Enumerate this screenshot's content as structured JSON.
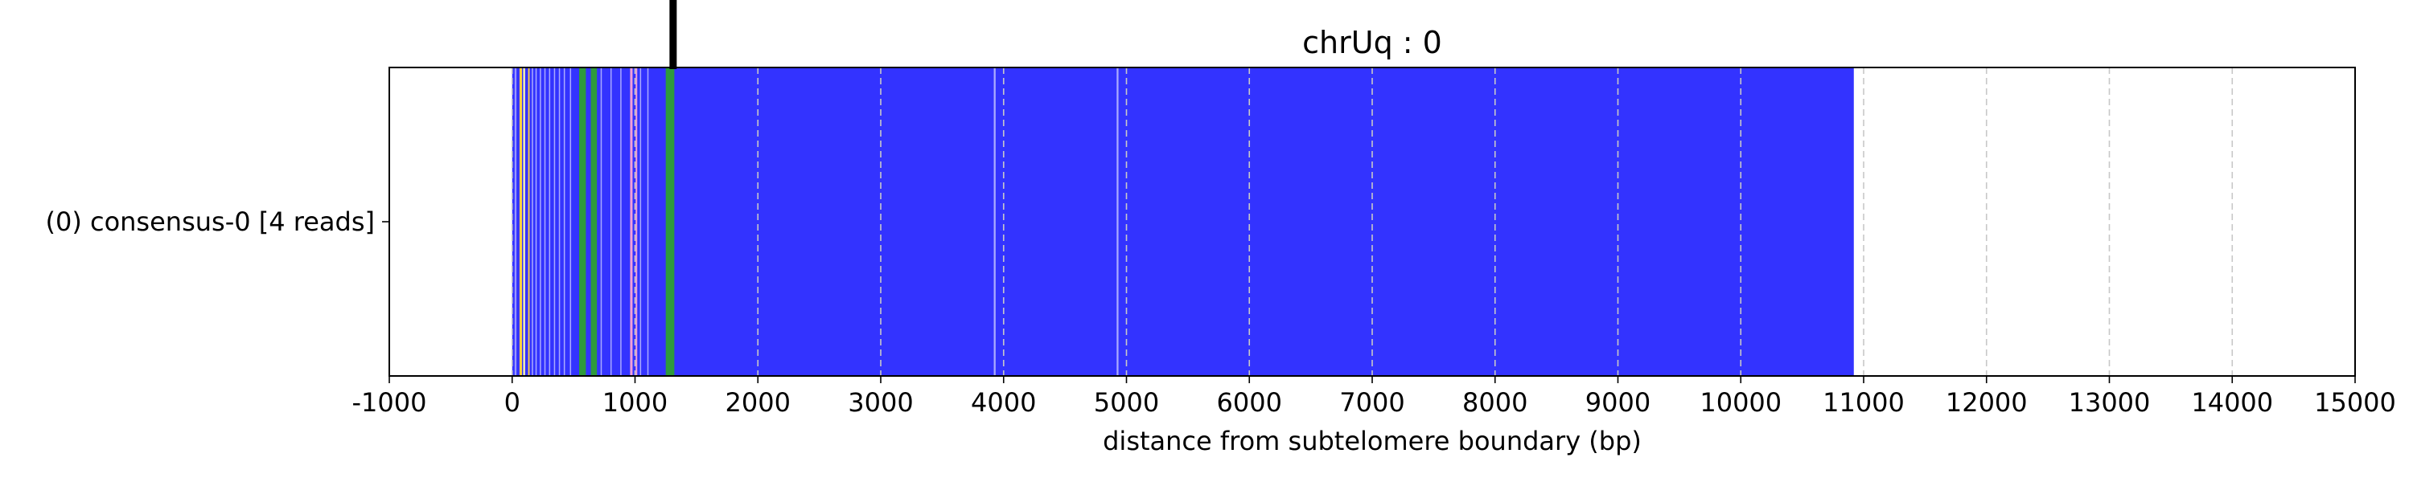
{
  "chart_data": {
    "type": "bar",
    "title": "chrUq : 0",
    "xlabel": "distance from subtelomere boundary (bp)",
    "ylabel": "",
    "xlim": [
      -1000,
      15000
    ],
    "xticks": [
      -1000,
      0,
      1000,
      2000,
      3000,
      4000,
      5000,
      6000,
      7000,
      8000,
      9000,
      10000,
      11000,
      12000,
      13000,
      14000,
      15000
    ],
    "grid": "vertical dashed",
    "rows": [
      {
        "label": "(0) consensus-0 [4 reads]"
      }
    ],
    "boundary_marker_x": 1310,
    "segments": [
      {
        "start": 0,
        "end": 10920,
        "color": "#3333ff"
      },
      {
        "start": 20,
        "end": 35,
        "color": "#9a9aff"
      },
      {
        "start": 60,
        "end": 80,
        "color": "#ffd23f"
      },
      {
        "start": 90,
        "end": 105,
        "color": "#ffffaa"
      },
      {
        "start": 130,
        "end": 142,
        "color": "#ffd23f"
      },
      {
        "start": 160,
        "end": 170,
        "color": "#aaaaff"
      },
      {
        "start": 190,
        "end": 198,
        "color": "#aaaaff"
      },
      {
        "start": 225,
        "end": 232,
        "color": "#aaaaff"
      },
      {
        "start": 262,
        "end": 268,
        "color": "#aaaaff"
      },
      {
        "start": 300,
        "end": 306,
        "color": "#aaaaff"
      },
      {
        "start": 340,
        "end": 345,
        "color": "#aaaaff"
      },
      {
        "start": 380,
        "end": 386,
        "color": "#aaaaff"
      },
      {
        "start": 420,
        "end": 425,
        "color": "#aaaaff"
      },
      {
        "start": 470,
        "end": 476,
        "color": "#aaaaff"
      },
      {
        "start": 545,
        "end": 600,
        "color": "#2e9a3c"
      },
      {
        "start": 640,
        "end": 690,
        "color": "#2e9a3c"
      },
      {
        "start": 720,
        "end": 726,
        "color": "#aaaaff"
      },
      {
        "start": 800,
        "end": 806,
        "color": "#aaaaff"
      },
      {
        "start": 880,
        "end": 886,
        "color": "#aaaaff"
      },
      {
        "start": 960,
        "end": 980,
        "color": "#f2a0d8"
      },
      {
        "start": 1005,
        "end": 1018,
        "color": "#f2a0d8"
      },
      {
        "start": 1040,
        "end": 1046,
        "color": "#aaaaff"
      },
      {
        "start": 1100,
        "end": 1106,
        "color": "#aaaaff"
      },
      {
        "start": 1250,
        "end": 1320,
        "color": "#2e9a3c"
      },
      {
        "start": 3920,
        "end": 3935,
        "color": "#aaaaff"
      },
      {
        "start": 4920,
        "end": 4935,
        "color": "#aaaaff"
      }
    ]
  }
}
